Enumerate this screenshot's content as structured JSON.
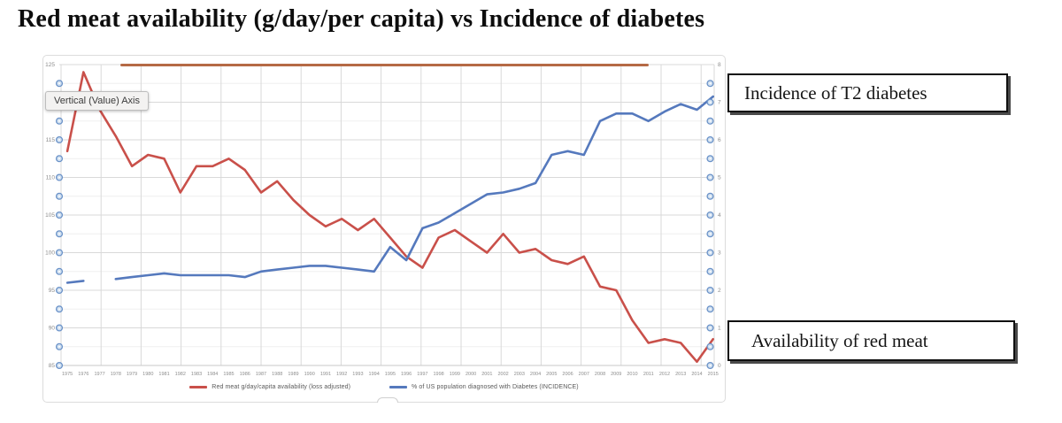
{
  "title": "Red meat availability (g/day/per capita) vs Incidence of diabetes",
  "tooltip": {
    "label": "Vertical (Value) Axis"
  },
  "callouts": {
    "incidence": "Incidence of T2 diabetes",
    "availability": "Availability of red meat"
  },
  "chart_data": {
    "type": "line",
    "x": [
      1975,
      1976,
      1977,
      1978,
      1979,
      1980,
      1981,
      1982,
      1983,
      1984,
      1985,
      1986,
      1987,
      1988,
      1989,
      1990,
      1991,
      1992,
      1993,
      1994,
      1995,
      1996,
      1997,
      1998,
      1999,
      2000,
      2001,
      2002,
      2003,
      2004,
      2005,
      2006,
      2007,
      2008,
      2009,
      2010,
      2011,
      2012,
      2013,
      2014,
      2015
    ],
    "series": [
      {
        "name": "Red meat g/day/capita availability (loss adjusted)",
        "axis": "left",
        "color": "#c9504a",
        "values": [
          113.5,
          124,
          119,
          115.5,
          111.5,
          113,
          112.5,
          108,
          111.5,
          111.5,
          112.5,
          111,
          108,
          109.5,
          107,
          105,
          103.5,
          104.5,
          103,
          104.5,
          102,
          99.5,
          98,
          102,
          103,
          101.5,
          100,
          102.5,
          100,
          100.5,
          99,
          98.5,
          99.5,
          95.5,
          95,
          91,
          88,
          88.5,
          88,
          85.5,
          88.5
        ]
      },
      {
        "name": "% of US population diagnosed with Diabetes (INCIDENCE)",
        "axis": "right",
        "color": "#5579bd",
        "values": [
          2.2,
          2.25,
          null,
          2.3,
          2.35,
          2.4,
          2.45,
          2.4,
          2.4,
          2.4,
          2.4,
          2.35,
          2.5,
          2.55,
          2.6,
          2.65,
          2.65,
          2.6,
          2.55,
          2.5,
          3.15,
          2.8,
          3.65,
          3.8,
          4.05,
          4.3,
          4.55,
          4.6,
          4.7,
          4.85,
          5.6,
          5.7,
          5.6,
          6.5,
          6.7,
          6.7,
          6.5,
          6.75,
          6.95,
          6.8,
          7.15
        ]
      }
    ],
    "left_axis": {
      "min": 85,
      "max": 125,
      "step": 5,
      "tick_labels": [
        "125",
        "120",
        "115",
        "110",
        "105",
        "100",
        "95",
        "90",
        "85"
      ]
    },
    "right_axis": {
      "min": 0,
      "max": 8,
      "step": 1,
      "tick_labels": [
        "8",
        "7",
        "6",
        "5",
        "4",
        "3",
        "2",
        "1",
        "0"
      ]
    },
    "grid": true,
    "legend_position": "bottom",
    "title": "Red meat availability (g/day/per capita) vs Incidence of diabetes"
  },
  "decor": {
    "accent_rule_color": "#b56a45",
    "grid_major_color": "#d9d9d9",
    "grid_minor_color": "#efefef",
    "axis_label_color": "#8c8c8c",
    "handle_fill": "#cfdff0",
    "handle_stroke": "#6a92c8"
  }
}
